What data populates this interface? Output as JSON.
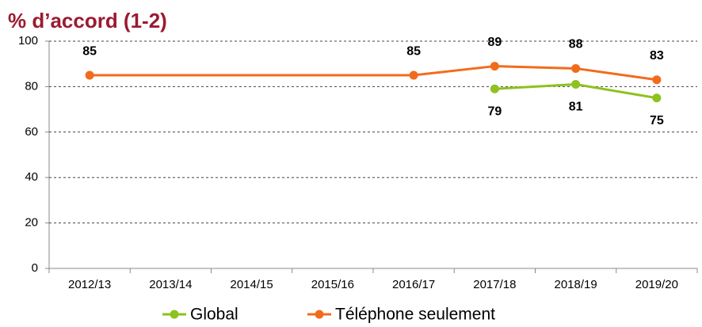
{
  "chart_data": {
    "type": "line",
    "title": "% d’accord (1-2)",
    "categories": [
      "2012/13",
      "2013/14",
      "2014/15",
      "2015/16",
      "2016/17",
      "2017/18",
      "2018/19",
      "2019/20"
    ],
    "series": [
      {
        "name": "Global",
        "color": "#8dc21f",
        "values": [
          null,
          null,
          null,
          null,
          null,
          79,
          81,
          75
        ]
      },
      {
        "name": "Téléphone seulement",
        "color": "#f26b1d",
        "values": [
          85,
          null,
          null,
          null,
          85,
          89,
          88,
          83
        ]
      }
    ],
    "ylim": [
      0,
      100
    ],
    "yticks": [
      0,
      20,
      40,
      60,
      80,
      100
    ],
    "grid": true,
    "span_gaps": true,
    "legend": "bottom"
  }
}
